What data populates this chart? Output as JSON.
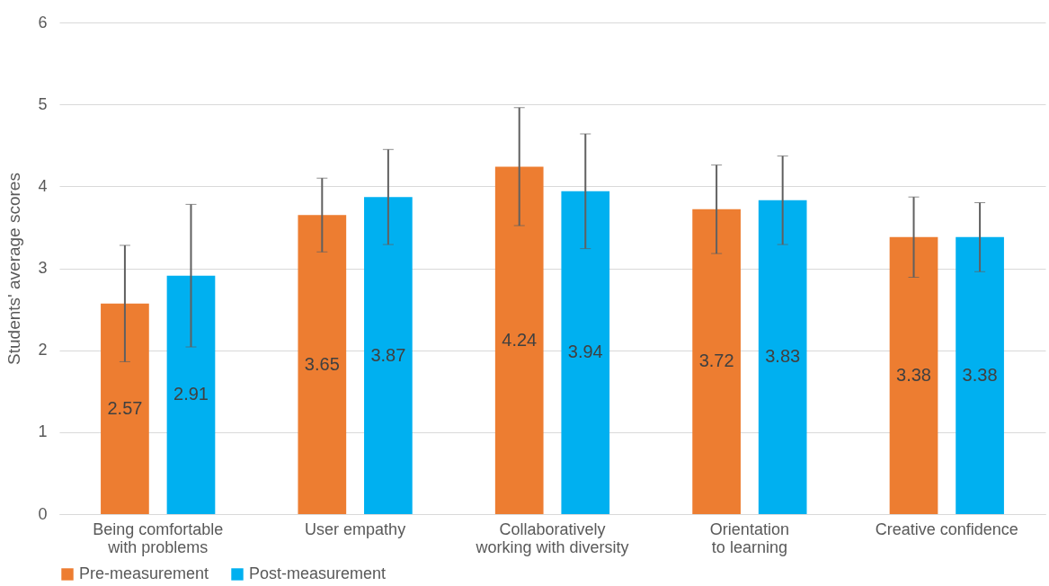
{
  "chart_data": {
    "type": "bar",
    "ylabel": "Students' average scores",
    "categories": [
      "Being comfortable with problems",
      "User empathy",
      "Collaboratively working with diversity",
      "Orientation to learning",
      "Creative confidence"
    ],
    "series": [
      {
        "name": "Pre-measurement",
        "color": "#ed7d31",
        "values": [
          2.57,
          3.65,
          4.24,
          3.72,
          3.38
        ],
        "errors": [
          0.71,
          0.45,
          0.72,
          0.54,
          0.49
        ]
      },
      {
        "name": "Post-measurement",
        "color": "#00b0f0",
        "values": [
          2.91,
          3.87,
          3.94,
          3.83,
          3.38
        ],
        "errors": [
          0.87,
          0.58,
          0.7,
          0.54,
          0.42
        ]
      }
    ],
    "ylim": [
      0,
      6
    ],
    "yticks": [
      0,
      1,
      2,
      3,
      4,
      5,
      6
    ],
    "grid": "y",
    "legend": "bottom",
    "data_labels": true
  }
}
